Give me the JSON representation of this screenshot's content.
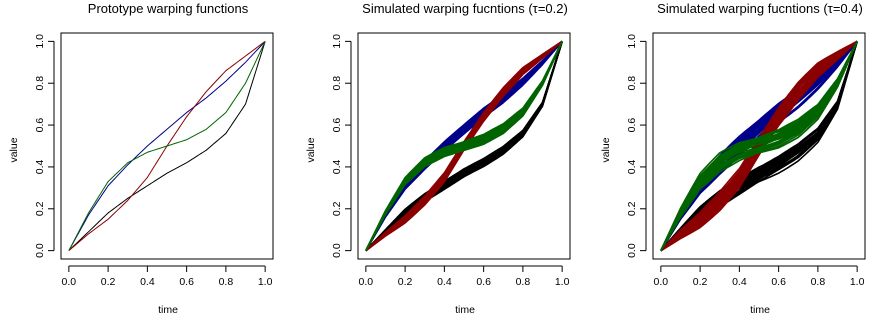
{
  "chart_data": [
    {
      "type": "line",
      "title": "Prototype warping functions",
      "xlabel": "time",
      "ylabel": "value",
      "xlim": [
        0,
        1
      ],
      "ylim": [
        0,
        1
      ],
      "xticks": [
        "0.0",
        "0.2",
        "0.4",
        "0.6",
        "0.8",
        "1.0"
      ],
      "yticks": [
        "0.0",
        "0.2",
        "0.4",
        "0.6",
        "0.8",
        "1.0"
      ],
      "series": [
        {
          "color": "#000000",
          "x": [
            0,
            0.1,
            0.2,
            0.3,
            0.4,
            0.5,
            0.6,
            0.7,
            0.8,
            0.9,
            1.0
          ],
          "y": [
            0,
            0.09,
            0.18,
            0.25,
            0.31,
            0.37,
            0.42,
            0.48,
            0.56,
            0.7,
            1.0
          ]
        },
        {
          "color": "#00008b",
          "x": [
            0,
            0.1,
            0.2,
            0.3,
            0.4,
            0.5,
            0.6,
            0.7,
            0.8,
            0.9,
            1.0
          ],
          "y": [
            0,
            0.17,
            0.31,
            0.41,
            0.5,
            0.58,
            0.66,
            0.73,
            0.81,
            0.9,
            1.0
          ]
        },
        {
          "color": "#8b0000",
          "x": [
            0,
            0.1,
            0.2,
            0.3,
            0.4,
            0.5,
            0.6,
            0.7,
            0.8,
            0.9,
            1.0
          ],
          "y": [
            0,
            0.08,
            0.15,
            0.24,
            0.35,
            0.5,
            0.64,
            0.76,
            0.86,
            0.93,
            1.0
          ]
        },
        {
          "color": "#006400",
          "x": [
            0,
            0.1,
            0.2,
            0.3,
            0.4,
            0.5,
            0.6,
            0.7,
            0.8,
            0.9,
            1.0
          ],
          "y": [
            0,
            0.18,
            0.33,
            0.42,
            0.47,
            0.5,
            0.53,
            0.58,
            0.66,
            0.8,
            1.0
          ]
        }
      ]
    },
    {
      "type": "line",
      "title": "Simulated warping fucntions (τ=0.2)",
      "xlabel": "time",
      "ylabel": "value",
      "xlim": [
        0,
        1
      ],
      "ylim": [
        0,
        1
      ],
      "xticks": [
        "0.0",
        "0.2",
        "0.4",
        "0.6",
        "0.8",
        "1.0"
      ],
      "yticks": [
        "0.0",
        "0.2",
        "0.4",
        "0.6",
        "0.8",
        "1.0"
      ],
      "band_spread": 0.2,
      "series": [
        {
          "color": "#000000",
          "x": [
            0,
            0.1,
            0.2,
            0.3,
            0.4,
            0.5,
            0.6,
            0.7,
            0.8,
            0.9,
            1.0
          ],
          "y": [
            0,
            0.09,
            0.18,
            0.25,
            0.31,
            0.37,
            0.42,
            0.48,
            0.56,
            0.7,
            1.0
          ]
        },
        {
          "color": "#00008b",
          "x": [
            0,
            0.1,
            0.2,
            0.3,
            0.4,
            0.5,
            0.6,
            0.7,
            0.8,
            0.9,
            1.0
          ],
          "y": [
            0,
            0.17,
            0.31,
            0.41,
            0.5,
            0.58,
            0.66,
            0.73,
            0.81,
            0.9,
            1.0
          ]
        },
        {
          "color": "#8b0000",
          "x": [
            0,
            0.1,
            0.2,
            0.3,
            0.4,
            0.5,
            0.6,
            0.7,
            0.8,
            0.9,
            1.0
          ],
          "y": [
            0,
            0.08,
            0.15,
            0.24,
            0.35,
            0.5,
            0.64,
            0.76,
            0.86,
            0.93,
            1.0
          ]
        },
        {
          "color": "#006400",
          "x": [
            0,
            0.1,
            0.2,
            0.3,
            0.4,
            0.5,
            0.6,
            0.7,
            0.8,
            0.9,
            1.0
          ],
          "y": [
            0,
            0.18,
            0.33,
            0.42,
            0.47,
            0.5,
            0.53,
            0.58,
            0.66,
            0.8,
            1.0
          ]
        }
      ]
    },
    {
      "type": "line",
      "title": "Simulated warping fucntions (τ=0.4)",
      "xlabel": "time",
      "ylabel": "value",
      "xlim": [
        0,
        1
      ],
      "ylim": [
        0,
        1
      ],
      "xticks": [
        "0.0",
        "0.2",
        "0.4",
        "0.6",
        "0.8",
        "1.0"
      ],
      "yticks": [
        "0.0",
        "0.2",
        "0.4",
        "0.6",
        "0.8",
        "1.0"
      ],
      "band_spread": 0.4,
      "series": [
        {
          "color": "#000000",
          "x": [
            0,
            0.1,
            0.2,
            0.3,
            0.4,
            0.5,
            0.6,
            0.7,
            0.8,
            0.9,
            1.0
          ],
          "y": [
            0,
            0.09,
            0.18,
            0.25,
            0.31,
            0.37,
            0.42,
            0.48,
            0.56,
            0.7,
            1.0
          ]
        },
        {
          "color": "#00008b",
          "x": [
            0,
            0.1,
            0.2,
            0.3,
            0.4,
            0.5,
            0.6,
            0.7,
            0.8,
            0.9,
            1.0
          ],
          "y": [
            0,
            0.17,
            0.31,
            0.41,
            0.5,
            0.58,
            0.66,
            0.73,
            0.81,
            0.9,
            1.0
          ]
        },
        {
          "color": "#8b0000",
          "x": [
            0,
            0.1,
            0.2,
            0.3,
            0.4,
            0.5,
            0.6,
            0.7,
            0.8,
            0.9,
            1.0
          ],
          "y": [
            0,
            0.08,
            0.15,
            0.24,
            0.35,
            0.5,
            0.64,
            0.76,
            0.86,
            0.93,
            1.0
          ]
        },
        {
          "color": "#006400",
          "x": [
            0,
            0.1,
            0.2,
            0.3,
            0.4,
            0.5,
            0.6,
            0.7,
            0.8,
            0.9,
            1.0
          ],
          "y": [
            0,
            0.18,
            0.33,
            0.42,
            0.47,
            0.5,
            0.53,
            0.58,
            0.66,
            0.8,
            1.0
          ]
        }
      ]
    }
  ]
}
